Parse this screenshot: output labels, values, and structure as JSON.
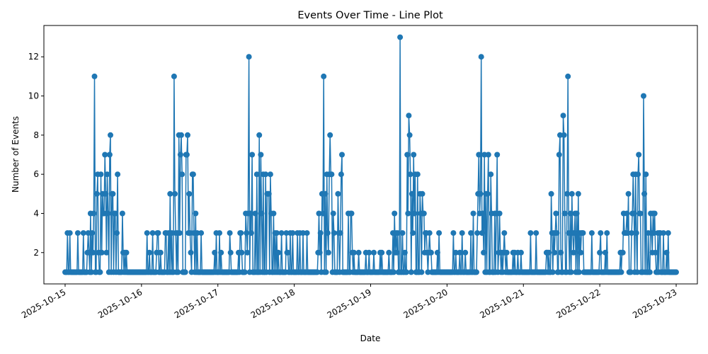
{
  "chart_data": {
    "type": "line",
    "title": "Events Over Time - Line Plot",
    "xlabel": "Date",
    "ylabel": "Number of Events",
    "x_ticks": [
      "2025-10-15",
      "2025-10-16",
      "2025-10-17",
      "2025-10-18",
      "2025-10-19",
      "2025-10-20",
      "2025-10-21",
      "2025-10-22",
      "2025-10-23"
    ],
    "y_ticks": [
      2,
      4,
      6,
      8,
      10,
      12
    ],
    "xlim": [
      "2025-10-14 17:20",
      "2025-10-23 06:40"
    ],
    "ylim": [
      0.4,
      13.6
    ],
    "grid": false,
    "color": "#1f77b4",
    "marker": "circle",
    "series": [
      {
        "x_start": "2025-10-15 00:00",
        "x_step": "15min",
        "description_note": "",
        "daily_peaks": [
          {
            "day": "2025-10-15",
            "peak_time": "2025-10-15 09:20",
            "peak": 11
          },
          {
            "day": "2025-10-16",
            "peak_time": "2025-10-16 10:10",
            "peak": 11
          },
          {
            "day": "2025-10-17",
            "peak_time": "2025-10-17 09:40",
            "peak": 12
          },
          {
            "day": "2025-10-18",
            "peak_time": "2025-10-18 09:10",
            "peak": 11
          },
          {
            "day": "2025-10-19",
            "peak_time": "2025-10-19 09:10",
            "peak": 13
          },
          {
            "day": "2025-10-20",
            "peak_time": "2025-10-20 10:40",
            "peak": 12
          },
          {
            "day": "2025-10-21",
            "peak_time": "2025-10-21 14:00",
            "peak": 11
          },
          {
            "day": "2025-10-22",
            "peak_time": "2025-10-22 13:40",
            "peak": 10
          }
        ],
        "x_end": "2025-10-23 00:00"
      }
    ]
  }
}
